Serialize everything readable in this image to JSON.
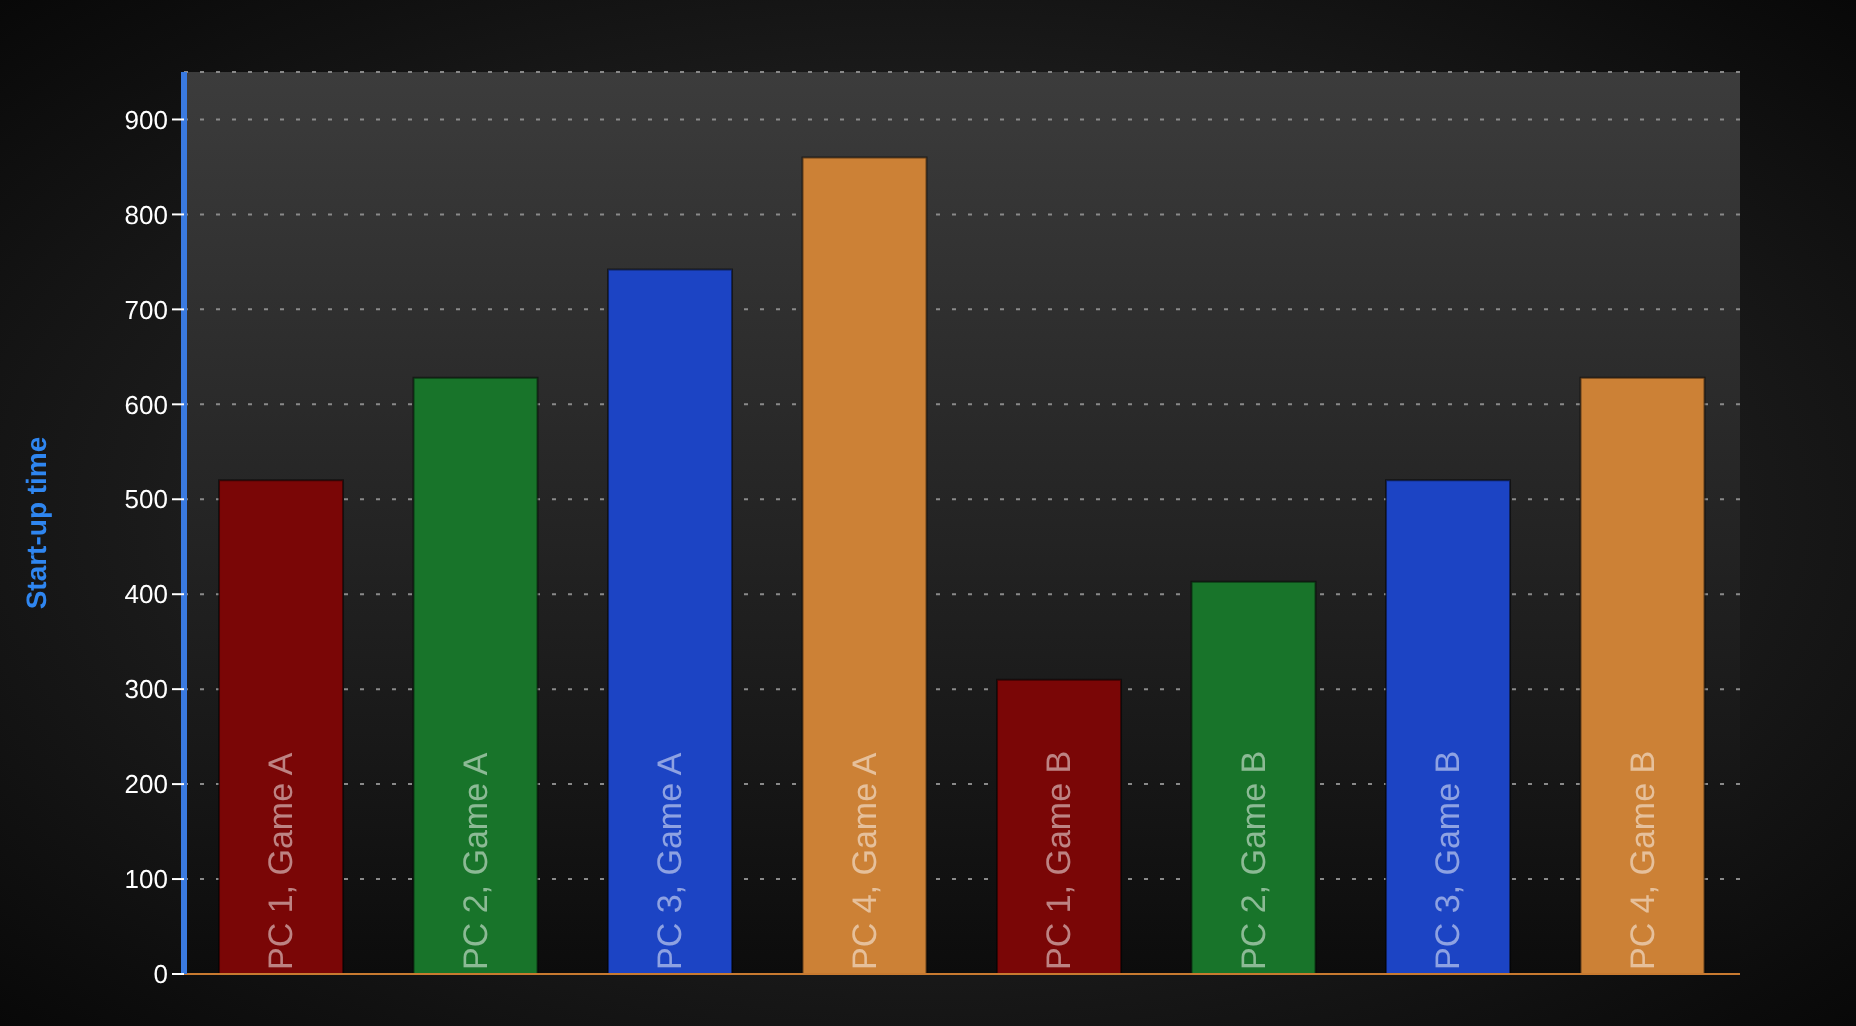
{
  "chart_data": {
    "type": "bar",
    "ylabel": "Start-up time",
    "categories": [
      "PC 1, Game A",
      "PC 2, Game A",
      "PC 3, Game A",
      "PC 4, Game A",
      "PC 1, Game B",
      "PC 2, Game B",
      "PC 3, Game B",
      "PC 4, Game B"
    ],
    "values": [
      520,
      628,
      742,
      860,
      310,
      413,
      520,
      628
    ],
    "colors": [
      "#7a0606",
      "#18742a",
      "#1c44c4",
      "#cc8136",
      "#7a0606",
      "#18742a",
      "#1c44c4",
      "#cc8136"
    ],
    "ylim": [
      0,
      950
    ],
    "yticks": [
      0,
      100,
      200,
      300,
      400,
      500,
      600,
      700,
      800,
      900
    ],
    "grid": "y"
  }
}
